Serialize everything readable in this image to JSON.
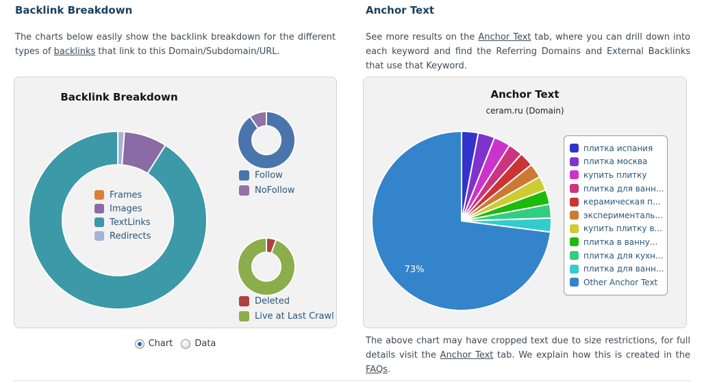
{
  "left": {
    "heading": "Backlink Breakdown",
    "intro": {
      "before": "The charts below easily show the backlink breakdown for the different types of ",
      "link": "backlinks",
      "after": " that link to this Domain/Subdomain/URL."
    },
    "controls": {
      "chart_label": "Chart",
      "data_label": "Data",
      "selected": "Chart"
    }
  },
  "right": {
    "heading": "Anchor Text",
    "intro": {
      "before": "See more results on the ",
      "link": "Anchor Text",
      "after": " tab, where you can drill down into each keyword and find the Referring Domains and External Backlinks that use that Keyword."
    },
    "footer": {
      "p1": "The above chart may have cropped text due to size restrictions, for full details visit the ",
      "link1": "Anchor Text",
      "p2": " tab. We explain how this is created in the ",
      "link2": "FAQs",
      "p3": "."
    }
  },
  "colors": {
    "heading_text": "#1B405E",
    "body_text": "#3C4A56",
    "panel_background": "#F2F2F2",
    "panel_border": "#D4D4D4",
    "legend_text": "#28567A",
    "radio_selected_dot": "#1566C0",
    "divider": "#DCDCDC"
  },
  "chart_data": [
    {
      "id": "backlink-breakdown-donut",
      "type": "pie",
      "subtype": "donut",
      "title": "Backlink Breakdown",
      "unit": "percent",
      "legend_position": "center",
      "legend": [
        {
          "label": "Frames",
          "color": "#DD8031"
        },
        {
          "label": "Images",
          "color": "#8A6BA5"
        },
        {
          "label": "TextLinks",
          "color": "#3C99A8"
        },
        {
          "label": "Redirects",
          "color": "#A7B2D8"
        }
      ],
      "slices": [
        {
          "label": "Redirects",
          "value": 1.2,
          "color": "#A7B2D8"
        },
        {
          "label": "Images",
          "value": 7.8,
          "color": "#8A6BA5"
        },
        {
          "label": "TextLinks",
          "value": 91.0,
          "color": "#3C99A8"
        },
        {
          "label": "Frames",
          "value": 0.0,
          "color": "#DD8031"
        }
      ]
    },
    {
      "id": "follow-nofollow-donut",
      "type": "pie",
      "subtype": "donut",
      "unit": "percent",
      "legend_position": "bottom",
      "legend": [
        {
          "label": "Follow",
          "color": "#4A75AC"
        },
        {
          "label": "NoFollow",
          "color": "#9173A6"
        }
      ],
      "slices": [
        {
          "label": "Follow",
          "value": 90.3,
          "color": "#4A75AC"
        },
        {
          "label": "NoFollow",
          "value": 9.7,
          "color": "#9173A6"
        }
      ]
    },
    {
      "id": "deleted-live-donut",
      "type": "pie",
      "subtype": "donut",
      "unit": "percent",
      "legend_position": "bottom",
      "legend": [
        {
          "label": "Deleted",
          "color": "#AE4241"
        },
        {
          "label": "Live at Last Crawl",
          "color": "#8CAD4B"
        }
      ],
      "slices": [
        {
          "label": "Deleted",
          "value": 5.5,
          "color": "#AE4241"
        },
        {
          "label": "Live at Last Crawl",
          "value": 94.5,
          "color": "#8CAD4B"
        }
      ]
    },
    {
      "id": "anchor-text-pie",
      "type": "pie",
      "subtype": "pie",
      "title": "Anchor Text",
      "subtitle": "ceram.ru (Domain)",
      "unit": "percent",
      "legend_position": "right",
      "data_label": "73%",
      "slices": [
        {
          "label": "плитка испания",
          "value": 3.0,
          "color": "#3333CC"
        },
        {
          "label": "плитка москва",
          "value": 3.0,
          "color": "#7F33CC"
        },
        {
          "label": "купить плитку",
          "value": 3.0,
          "color": "#CC33CC"
        },
        {
          "label": "плитка для ванн...",
          "value": 2.6,
          "color": "#CC3380"
        },
        {
          "label": "керамическая п...",
          "value": 2.6,
          "color": "#CC3333"
        },
        {
          "label": "эксперименталь...",
          "value": 2.6,
          "color": "#CC7A33"
        },
        {
          "label": "купить плитку в...",
          "value": 2.6,
          "color": "#CCCC33"
        },
        {
          "label": "плитка в ванну...",
          "value": 2.6,
          "color": "#1CBB0A"
        },
        {
          "label": "плитка для кухн...",
          "value": 2.5,
          "color": "#33CC80"
        },
        {
          "label": "плитка для ванн...",
          "value": 2.5,
          "color": "#33CCCC"
        },
        {
          "label": "Other Anchor Text",
          "value": 73.0,
          "color": "#3484CB"
        }
      ]
    }
  ]
}
